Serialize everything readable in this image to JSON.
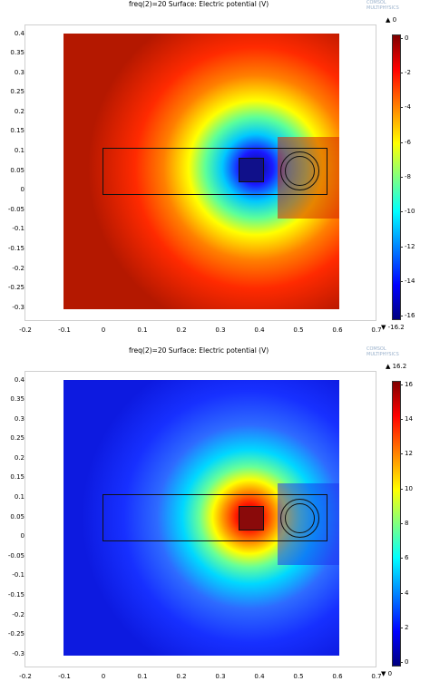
{
  "panels": [
    {
      "title": "freq(2)=20  Surface: Electric potential (V)",
      "watermark": [
        "COMSOL",
        "MULTIPHYSICS"
      ],
      "y_ticks": [
        "0.4",
        "0.35",
        "0.3",
        "0.25",
        "0.2",
        "0.15",
        "0.1",
        "0.05",
        "0",
        "-0.05",
        "-0.1",
        "-0.15",
        "-0.2",
        "-0.25",
        "-0.3"
      ],
      "x_ticks": [
        "-0.2",
        "-0.1",
        "0",
        "0.1",
        "0.2",
        "0.3",
        "0.4",
        "0.5",
        "0.6",
        "0.7"
      ],
      "colorbar_max": "▲ 0",
      "colorbar_min": "▼ -16.2",
      "colorbar_ticks": [
        "0",
        "-2",
        "-4",
        "-6",
        "-8",
        "-10",
        "-12",
        "-14",
        "-16"
      ],
      "colormap": "rainbow-inverted",
      "background_color": "#b41800",
      "hotspot_color": "#0a0a8c"
    },
    {
      "title": "freq(2)=20  Surface: Electric potential (V)",
      "watermark": [
        "COMSOL",
        "MULTIPHYSICS"
      ],
      "y_ticks": [
        "0.4",
        "0.35",
        "0.3",
        "0.25",
        "0.2",
        "0.15",
        "0.1",
        "0.05",
        "0",
        "-0.05",
        "-0.1",
        "-0.15",
        "-0.2",
        "-0.25",
        "-0.3"
      ],
      "x_ticks": [
        "-0.2",
        "-0.1",
        "0",
        "0.1",
        "0.2",
        "0.3",
        "0.4",
        "0.5",
        "0.6",
        "0.7"
      ],
      "colorbar_max": "▲ 16.2",
      "colorbar_min": "▼ 0",
      "colorbar_ticks": [
        "16",
        "14",
        "12",
        "10",
        "8",
        "6",
        "4",
        "2",
        "0"
      ],
      "colormap": "rainbow",
      "background_color": "#0d1ae0",
      "hotspot_color": "#8c0000"
    }
  ]
}
